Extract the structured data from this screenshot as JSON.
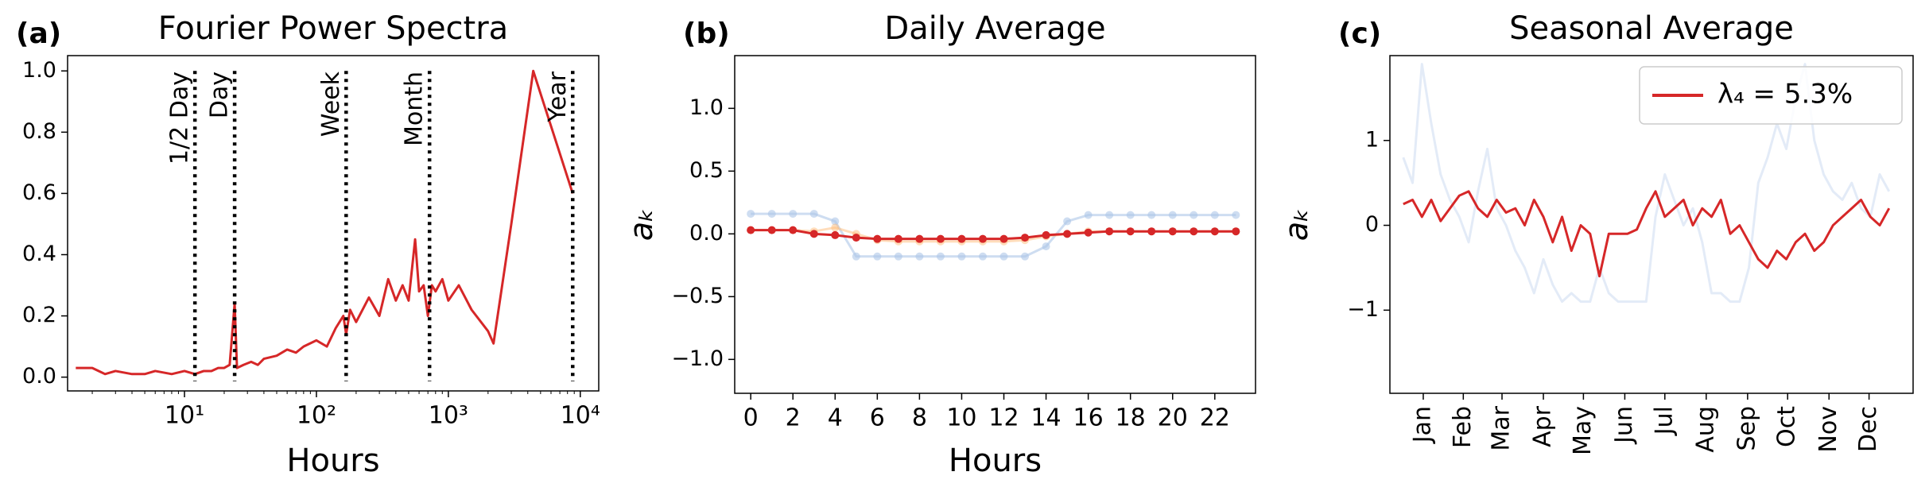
{
  "chart_data": [
    {
      "type": "line",
      "label": "(a)",
      "title": "Fourier Power Spectra",
      "xlabel": "Hours",
      "xscale": "log",
      "xlim": [
        1.3,
        13800
      ],
      "ylim": [
        -0.045,
        1.05
      ],
      "xticks": [
        {
          "value": 10,
          "label": "10¹"
        },
        {
          "value": 100,
          "label": "10²"
        },
        {
          "value": 1000,
          "label": "10³"
        },
        {
          "value": 10000,
          "label": "10⁴"
        }
      ],
      "yticks": [
        {
          "value": 0,
          "label": "0.0"
        },
        0.2,
        0.4,
        0.6,
        0.8,
        {
          "value": 1,
          "label": "1.0"
        }
      ],
      "vlines": [
        {
          "x": 12,
          "label": "1/2 Day"
        },
        {
          "x": 24,
          "label": "Day"
        },
        {
          "x": 168,
          "label": "Week"
        },
        {
          "x": 720,
          "label": "Month"
        },
        {
          "x": 8760,
          "label": "Year"
        }
      ],
      "x": [
        1.5,
        2,
        2.5,
        3,
        4,
        5,
        6,
        8,
        10,
        12,
        14,
        16,
        18,
        20,
        22,
        24,
        25,
        28,
        32,
        36,
        40,
        50,
        60,
        70,
        80,
        100,
        120,
        140,
        160,
        168,
        180,
        200,
        250,
        300,
        350,
        400,
        450,
        500,
        560,
        600,
        650,
        700,
        750,
        800,
        900,
        1000,
        1200,
        1500,
        2000,
        2200,
        3000,
        4400,
        8760
      ],
      "series": [
        {
          "color": "#d62728",
          "values": [
            0.03,
            0.03,
            0.01,
            0.02,
            0.01,
            0.01,
            0.02,
            0.01,
            0.02,
            0.01,
            0.02,
            0.02,
            0.03,
            0.03,
            0.04,
            0.24,
            0.03,
            0.04,
            0.05,
            0.04,
            0.06,
            0.07,
            0.09,
            0.08,
            0.1,
            0.12,
            0.1,
            0.16,
            0.2,
            0.14,
            0.22,
            0.18,
            0.26,
            0.2,
            0.32,
            0.25,
            0.3,
            0.25,
            0.45,
            0.28,
            0.3,
            0.2,
            0.3,
            0.28,
            0.32,
            0.25,
            0.3,
            0.22,
            0.15,
            0.11,
            0.5,
            1.0,
            0.6
          ]
        }
      ]
    },
    {
      "type": "line",
      "label": "(b)",
      "title": "Daily Average",
      "xlabel": "Hours",
      "ylabel": "aₖ",
      "xlim": [
        -0.76,
        23.93
      ],
      "ylim": [
        -1.27,
        1.42
      ],
      "xticks": [
        0,
        2,
        4,
        6,
        8,
        10,
        12,
        14,
        16,
        18,
        20,
        22
      ],
      "yticks": [
        {
          "value": -1,
          "label": "−1.0"
        },
        {
          "value": -0.5,
          "label": "−0.5"
        },
        {
          "value": 0,
          "label": "0.0"
        },
        0.5,
        {
          "value": 1,
          "label": "1.0"
        }
      ],
      "marker": true,
      "x": [
        0,
        1,
        2,
        3,
        4,
        5,
        6,
        7,
        8,
        9,
        10,
        11,
        12,
        13,
        14,
        15,
        16,
        17,
        18,
        19,
        20,
        21,
        22,
        23
      ],
      "series": [
        {
          "color": "#aec7e8",
          "alpha": 0.6,
          "values": [
            0.16,
            0.16,
            0.16,
            0.16,
            0.1,
            -0.18,
            -0.18,
            -0.18,
            -0.18,
            -0.18,
            -0.18,
            -0.18,
            -0.18,
            -0.18,
            -0.1,
            0.1,
            0.15,
            0.15,
            0.15,
            0.15,
            0.15,
            0.15,
            0.15,
            0.15
          ]
        },
        {
          "color": "#ffbb78",
          "alpha": 0.5,
          "values": [
            0.03,
            0.03,
            0.03,
            0.02,
            0.05,
            0.0,
            -0.05,
            -0.06,
            -0.06,
            -0.06,
            -0.06,
            -0.06,
            -0.06,
            -0.05,
            -0.02,
            0.0,
            0.02,
            0.02,
            0.02,
            0.02,
            0.02,
            0.02,
            0.02,
            0.02
          ]
        },
        {
          "color": "#d62728",
          "values": [
            0.03,
            0.03,
            0.03,
            0.0,
            -0.01,
            -0.03,
            -0.04,
            -0.04,
            -0.04,
            -0.04,
            -0.04,
            -0.04,
            -0.04,
            -0.03,
            -0.01,
            0.0,
            0.01,
            0.02,
            0.02,
            0.02,
            0.02,
            0.02,
            0.02,
            0.02
          ]
        }
      ]
    },
    {
      "type": "line",
      "label": "(c)",
      "title": "Seasonal Average",
      "ylabel": "aₖ",
      "legend": "upper right",
      "xtick_rotation": 90,
      "xlim": [
        -10,
        382
      ],
      "ylim": [
        -1.98,
        2.0
      ],
      "xticks": [
        {
          "value": 15,
          "label": "Jan"
        },
        {
          "value": 45,
          "label": "Feb"
        },
        {
          "value": 74,
          "label": "Mar"
        },
        {
          "value": 105,
          "label": "Apr"
        },
        {
          "value": 135,
          "label": "May"
        },
        {
          "value": 166,
          "label": "Jun"
        },
        {
          "value": 196,
          "label": "Jul"
        },
        {
          "value": 227,
          "label": "Aug"
        },
        {
          "value": 258,
          "label": "Sep"
        },
        {
          "value": 288,
          "label": "Oct"
        },
        {
          "value": 319,
          "label": "Nov"
        },
        {
          "value": 349,
          "label": "Dec"
        }
      ],
      "yticks": [
        {
          "value": -1,
          "label": "−1"
        },
        0,
        1
      ],
      "x": [
        0,
        7,
        14,
        21,
        28,
        35,
        42,
        49,
        56,
        63,
        70,
        77,
        84,
        91,
        98,
        105,
        112,
        119,
        126,
        133,
        140,
        147,
        154,
        161,
        168,
        175,
        182,
        189,
        196,
        203,
        210,
        217,
        224,
        231,
        238,
        245,
        252,
        259,
        266,
        273,
        280,
        287,
        294,
        301,
        308,
        315,
        322,
        329,
        336,
        343,
        350,
        357,
        364
      ],
      "series": [
        {
          "color": "#aec7e8",
          "alpha": 0.35,
          "values": [
            0.8,
            0.5,
            1.9,
            1.2,
            0.6,
            0.3,
            0.1,
            -0.2,
            0.4,
            0.9,
            0.2,
            0.0,
            -0.3,
            -0.5,
            -0.8,
            -0.4,
            -0.7,
            -0.9,
            -0.8,
            -0.9,
            -0.9,
            -0.5,
            -0.8,
            -0.9,
            -0.9,
            -0.9,
            -0.9,
            0.1,
            0.6,
            0.3,
            0.0,
            0.2,
            -0.2,
            -0.8,
            -0.8,
            -0.9,
            -0.9,
            -0.5,
            0.5,
            0.8,
            1.2,
            0.9,
            1.5,
            1.9,
            1.0,
            0.6,
            0.4,
            0.3,
            0.5,
            0.2,
            0.1,
            0.6,
            0.4
          ]
        },
        {
          "name": "λ₄ = 5.3%",
          "color": "#d62728",
          "values": [
            0.25,
            0.3,
            0.1,
            0.3,
            0.05,
            0.2,
            0.35,
            0.4,
            0.2,
            0.1,
            0.3,
            0.15,
            0.2,
            0.0,
            0.3,
            0.1,
            -0.2,
            0.1,
            -0.3,
            0.0,
            -0.1,
            -0.6,
            -0.1,
            -0.1,
            -0.1,
            -0.05,
            0.2,
            0.4,
            0.1,
            0.2,
            0.3,
            0.0,
            0.2,
            0.1,
            0.3,
            -0.1,
            0.0,
            -0.2,
            -0.4,
            -0.5,
            -0.3,
            -0.4,
            -0.2,
            -0.1,
            -0.3,
            -0.2,
            0.0,
            0.1,
            0.2,
            0.3,
            0.1,
            0.0,
            0.2
          ]
        }
      ]
    }
  ]
}
